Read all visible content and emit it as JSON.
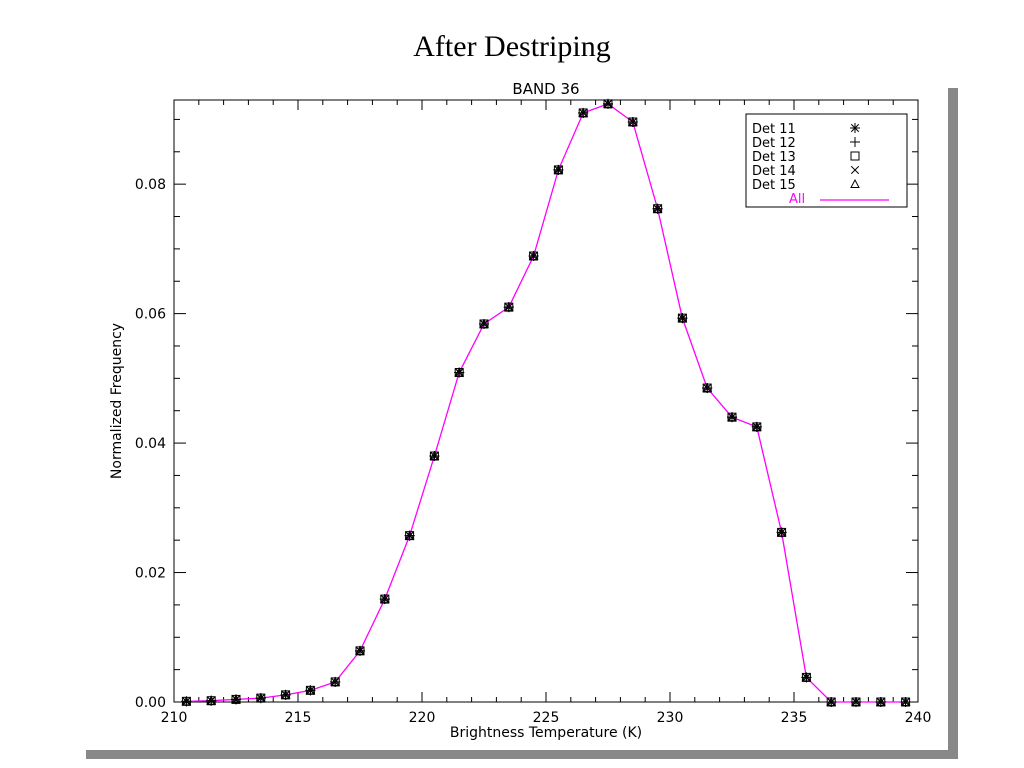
{
  "slide": {
    "title": "After Destriping"
  },
  "colors": {
    "line": "#ff00ff",
    "marker": "#000000",
    "shadow": "#888888"
  },
  "chart_data": {
    "type": "line",
    "title": "BAND 36",
    "xlabel": "Brightness Temperature (K)",
    "ylabel": "Normalized Frequency",
    "xlim": [
      210,
      240
    ],
    "ylim": [
      0,
      0.093
    ],
    "xticks": [
      "210",
      "215",
      "220",
      "225",
      "230",
      "235",
      "240"
    ],
    "yticks": [
      "0.00",
      "0.02",
      "0.04",
      "0.06",
      "0.08"
    ],
    "legend": {
      "position": "top-right",
      "entries": [
        {
          "label": "Det 11",
          "symbol": "asterisk"
        },
        {
          "label": "Det 12",
          "symbol": "plus"
        },
        {
          "label": "Det 13",
          "symbol": "square"
        },
        {
          "label": "Det 14",
          "symbol": "x"
        },
        {
          "label": "Det 15",
          "symbol": "triangle"
        },
        {
          "label": "All",
          "symbol": "line"
        }
      ]
    },
    "x": [
      210.5,
      211.5,
      212.5,
      213.5,
      214.5,
      215.5,
      216.5,
      217.5,
      218.5,
      219.5,
      220.5,
      221.5,
      222.5,
      223.5,
      224.5,
      225.5,
      226.5,
      227.5,
      228.5,
      229.5,
      230.5,
      231.5,
      232.5,
      233.5,
      234.5,
      235.5,
      236.5,
      237.5,
      238.5,
      239.5
    ],
    "series": [
      {
        "name": "All",
        "values": [
          0.0001,
          0.0002,
          0.0004,
          0.0006,
          0.0011,
          0.0018,
          0.0031,
          0.0079,
          0.0159,
          0.0257,
          0.038,
          0.0509,
          0.0584,
          0.061,
          0.0689,
          0.0822,
          0.091,
          0.0924,
          0.0896,
          0.0762,
          0.0593,
          0.0485,
          0.044,
          0.0425,
          0.0262,
          0.0038,
          0.0,
          0.0,
          0.0,
          0.0
        ]
      }
    ]
  }
}
